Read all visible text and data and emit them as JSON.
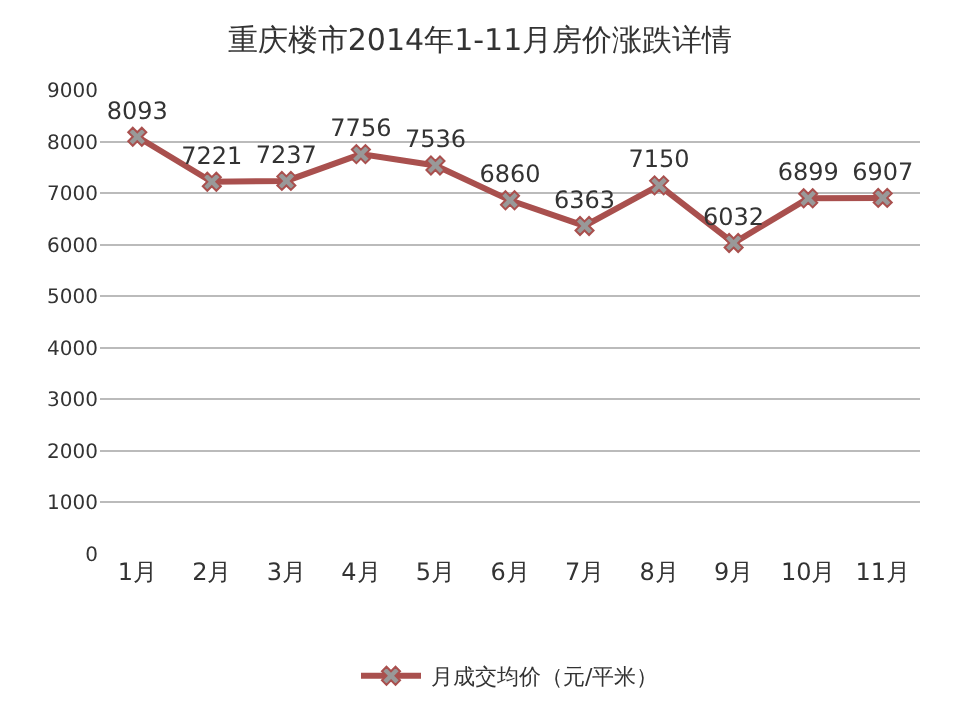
{
  "chart_data": {
    "type": "line",
    "title": "重庆楼市2014年1-11月房价涨跌详情",
    "categories": [
      "1月",
      "2月",
      "3月",
      "4月",
      "5月",
      "6月",
      "7月",
      "8月",
      "9月",
      "10月",
      "11月"
    ],
    "series": [
      {
        "name": "月成交均价（元/平米）",
        "color": "#a9504e",
        "values": [
          8093,
          7221,
          7237,
          7756,
          7536,
          6860,
          6363,
          7150,
          6032,
          6899,
          6907
        ]
      }
    ],
    "ylim": [
      0,
      9000
    ],
    "yticks": [
      0,
      1000,
      2000,
      3000,
      4000,
      5000,
      6000,
      7000,
      8000,
      9000
    ],
    "grid": "y",
    "legend": "bottom",
    "marker": "cross",
    "line_style": "solid",
    "data_labels": true
  }
}
